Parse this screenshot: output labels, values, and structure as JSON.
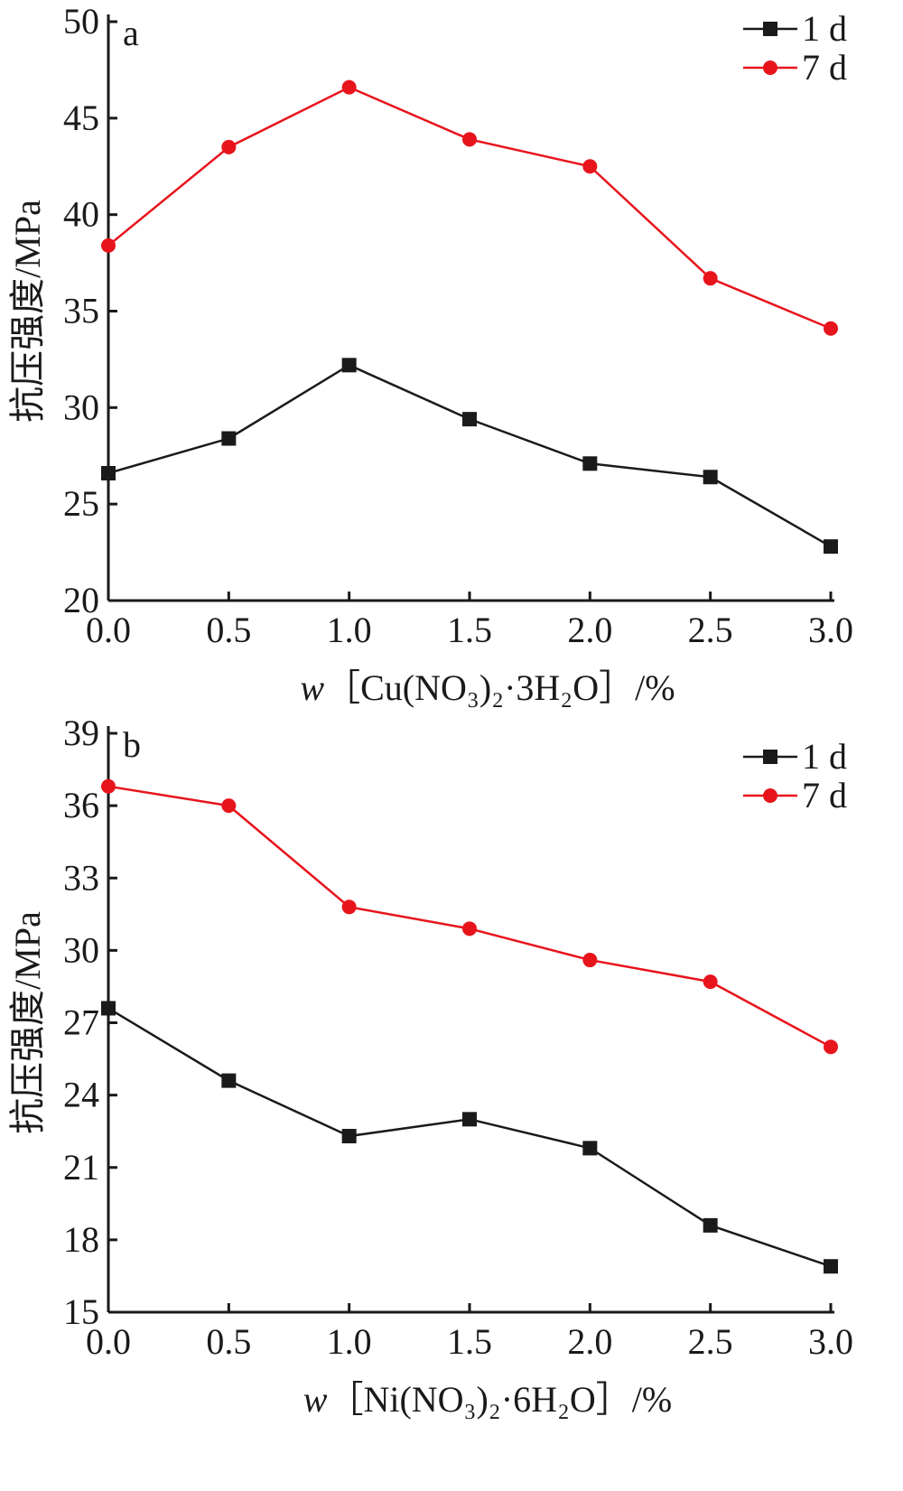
{
  "chart_data": [
    {
      "type": "line",
      "panel": "a",
      "x": [
        0.0,
        0.5,
        1.0,
        1.5,
        2.0,
        2.5,
        3.0
      ],
      "x_tick_labels": [
        "0.0",
        "0.5",
        "1.0",
        "1.5",
        "2.0",
        "2.5",
        "3.0"
      ],
      "xlabel": {
        "prefix": "w",
        "formula": "［Cu(NO₃)₂·3H₂O］/%"
      },
      "ylabel": "抗压强度/MPa",
      "xlim": [
        0,
        3
      ],
      "ylim": [
        20,
        50
      ],
      "y_ticks": [
        20,
        25,
        30,
        35,
        40,
        45,
        50
      ],
      "y_tick_labels": [
        "20",
        "25",
        "30",
        "35",
        "40",
        "45",
        "50"
      ],
      "grid": false,
      "legend_position": "top-right",
      "series": [
        {
          "name": "1 d",
          "color": "#1a1a1a",
          "marker": "square",
          "values": [
            26.6,
            28.4,
            32.2,
            29.4,
            27.1,
            26.4,
            22.8
          ]
        },
        {
          "name": "7 d",
          "color": "#e8141c",
          "marker": "circle",
          "values": [
            38.4,
            43.5,
            46.6,
            43.9,
            42.5,
            36.7,
            34.1
          ]
        }
      ]
    },
    {
      "type": "line",
      "panel": "b",
      "x": [
        0.0,
        0.5,
        1.0,
        1.5,
        2.0,
        2.5,
        3.0
      ],
      "x_tick_labels": [
        "0.0",
        "0.5",
        "1.0",
        "1.5",
        "2.0",
        "2.5",
        "3.0"
      ],
      "xlabel": {
        "prefix": "w",
        "formula": "［Ni(NO₃)₂·6H₂O］/%"
      },
      "ylabel": "抗压强度/MPa",
      "xlim": [
        0,
        3
      ],
      "ylim": [
        15,
        39
      ],
      "y_ticks": [
        15,
        18,
        21,
        24,
        27,
        30,
        33,
        36,
        39
      ],
      "y_tick_labels": [
        "15",
        "18",
        "21",
        "24",
        "27",
        "30",
        "33",
        "36",
        "39"
      ],
      "grid": false,
      "legend_position": "top-right",
      "series": [
        {
          "name": "1 d",
          "color": "#1a1a1a",
          "marker": "square",
          "values": [
            27.6,
            24.6,
            22.3,
            23.0,
            21.8,
            18.6,
            16.9
          ]
        },
        {
          "name": "7 d",
          "color": "#e8141c",
          "marker": "circle",
          "values": [
            36.8,
            36.0,
            31.8,
            30.9,
            29.6,
            28.7,
            26.0
          ]
        }
      ]
    }
  ]
}
